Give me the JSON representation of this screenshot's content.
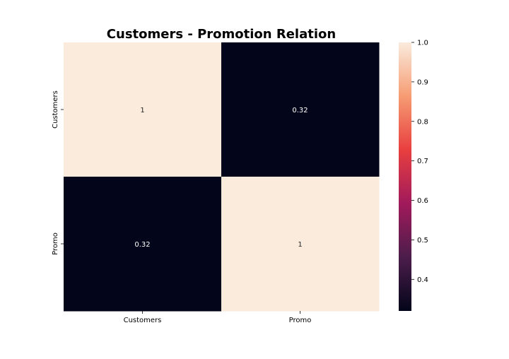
{
  "chart_data": {
    "type": "heatmap",
    "title": "Customers - Promotion Relation",
    "xlabel": "",
    "ylabel": "",
    "x_categories": [
      "Customers",
      "Promo"
    ],
    "y_categories": [
      "Customers",
      "Promo"
    ],
    "values": [
      [
        1,
        0.32
      ],
      [
        0.32,
        1
      ]
    ],
    "annotations": [
      [
        "1",
        "0.32"
      ],
      [
        "0.32",
        "1"
      ]
    ],
    "colorbar": {
      "vmin": 0.32,
      "vmax": 1.0,
      "ticks": [
        0.4,
        0.5,
        0.6,
        0.7,
        0.8,
        0.9,
        1.0
      ],
      "tick_labels": [
        "0.4",
        "0.5",
        "0.6",
        "0.7",
        "0.8",
        "0.9",
        "1.0"
      ]
    },
    "colormap": [
      "#03051a",
      "#4c1d4b",
      "#a11a5b",
      "#e83f3f",
      "#f69c73",
      "#faebdd"
    ],
    "annotation_colors": {
      "on_dark": "#ffffff",
      "on_light": "#262626"
    }
  }
}
